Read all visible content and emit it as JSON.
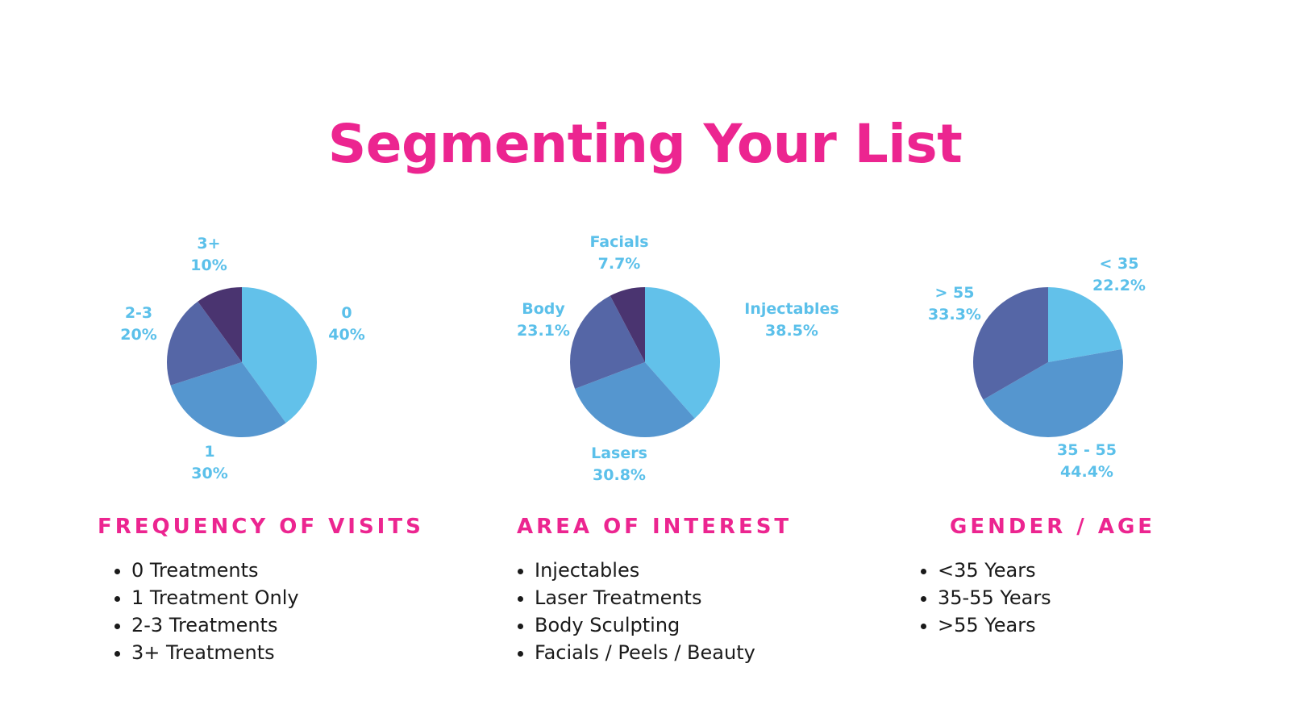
{
  "title": "Segmenting Your List",
  "colors": {
    "title": "#ec2590",
    "label": "#5bc0ea",
    "slice_1": "#62c1ea",
    "slice_2": "#5596cf",
    "slice_3": "#5566a6",
    "slice_4": "#4a3470"
  },
  "sections": [
    {
      "heading": "FREQUENCY OF VISITS",
      "items": [
        "0 Treatments",
        "1 Treatment Only",
        "2-3 Treatments",
        "3+ Treatments"
      ]
    },
    {
      "heading": "AREA OF INTEREST",
      "items": [
        "Injectables",
        "Laser Treatments",
        "Body Sculpting",
        "Facials / Peels / Beauty"
      ]
    },
    {
      "heading": "GENDER / AGE",
      "items": [
        "<35 Years",
        "35-55 Years",
        ">55 Years"
      ]
    }
  ],
  "chart_data": [
    {
      "type": "pie",
      "title": "",
      "slices": [
        {
          "label": "0",
          "pct_label": "40%",
          "value": 40
        },
        {
          "label": "1",
          "pct_label": "30%",
          "value": 30
        },
        {
          "label": "2-3",
          "pct_label": "20%",
          "value": 20
        },
        {
          "label": "3+",
          "pct_label": "10%",
          "value": 10
        }
      ]
    },
    {
      "type": "pie",
      "title": "",
      "slices": [
        {
          "label": "Injectables",
          "pct_label": "38.5%",
          "value": 38.5
        },
        {
          "label": "Lasers",
          "pct_label": "30.8%",
          "value": 30.8
        },
        {
          "label": "Body",
          "pct_label": "23.1%",
          "value": 23.1
        },
        {
          "label": "Facials",
          "pct_label": "7.7%",
          "value": 7.7
        }
      ]
    },
    {
      "type": "pie",
      "title": "",
      "slices": [
        {
          "label": "< 35",
          "pct_label": "22.2%",
          "value": 22.2
        },
        {
          "label": "35 - 55",
          "pct_label": "44.4%",
          "value": 44.4
        },
        {
          "label": "> 55",
          "pct_label": "33.3%",
          "value": 33.3
        }
      ]
    }
  ]
}
